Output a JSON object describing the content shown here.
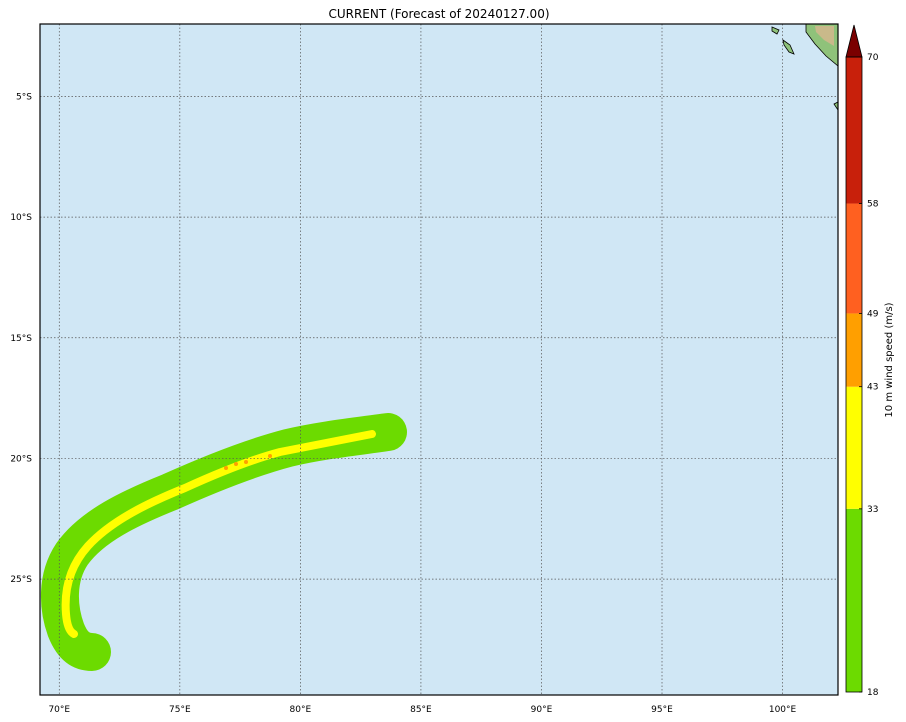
{
  "title": "CURRENT (Forecast of 20240127.00)",
  "map": {
    "ocean_color": "#d0e7f5",
    "grid": true,
    "lon_labels": [
      "70°E",
      "75°E",
      "80°E",
      "85°E",
      "90°E",
      "95°E",
      "100°E"
    ],
    "lat_labels": [
      "5°S",
      "10°S",
      "15°S",
      "20°S",
      "25°S"
    ],
    "lon_values": [
      70,
      75,
      80,
      85,
      90,
      95,
      100
    ],
    "lat_values": [
      -5,
      -10,
      -15,
      -20,
      -25
    ],
    "lon_range": [
      69.2,
      102.3
    ],
    "lat_range": [
      -29.8,
      -2.0
    ]
  },
  "colorbar": {
    "label": "10 m wind speed (m/s)",
    "ticks": [
      "18",
      "33",
      "43",
      "49",
      "58",
      "70"
    ],
    "levels": [
      18,
      33,
      43,
      49,
      58,
      70
    ],
    "colors": [
      "#6cdb00",
      "#ffff00",
      "#ff9f00",
      "#ff6020",
      "#c8200b"
    ],
    "extend_color": "#7a0000"
  },
  "storm_track": {
    "outer_color": "#6cdb00",
    "core_color": "#ffff00",
    "peak_color": "#ff9f00"
  }
}
